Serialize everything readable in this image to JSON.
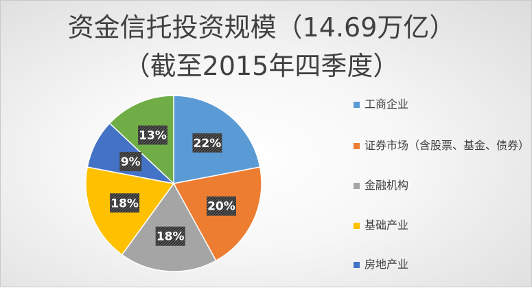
{
  "title": {
    "line1": "资金信托投资规模（14.69万亿）",
    "line2": "（截至2015年四季度）"
  },
  "legend": {
    "items": [
      {
        "label": "工商企业",
        "color": "#5b9bd5"
      },
      {
        "label": "证券市场（含股票、基金、债券）",
        "color": "#ed7d31"
      },
      {
        "label": "金融机构",
        "color": "#a5a5a5"
      },
      {
        "label": "基础产业",
        "color": "#ffc000"
      },
      {
        "label": "房地产业",
        "color": "#4472c4"
      }
    ]
  },
  "chart_data": {
    "type": "pie",
    "title": "资金信托投资规模（14.69万亿）（截至2015年四季度）",
    "categories": [
      "工商企业",
      "证券市场（含股票、基金、债券）",
      "金融机构",
      "基础产业",
      "房地产业",
      ""
    ],
    "values": [
      22,
      20,
      18,
      18,
      9,
      13
    ],
    "labels": [
      "22%",
      "20%",
      "18%",
      "18%",
      "9%",
      "13%"
    ],
    "colors": [
      "#5b9bd5",
      "#ed7d31",
      "#a5a5a5",
      "#ffc000",
      "#4472c4",
      "#70ad47"
    ],
    "unit": "%",
    "legend": "right"
  }
}
